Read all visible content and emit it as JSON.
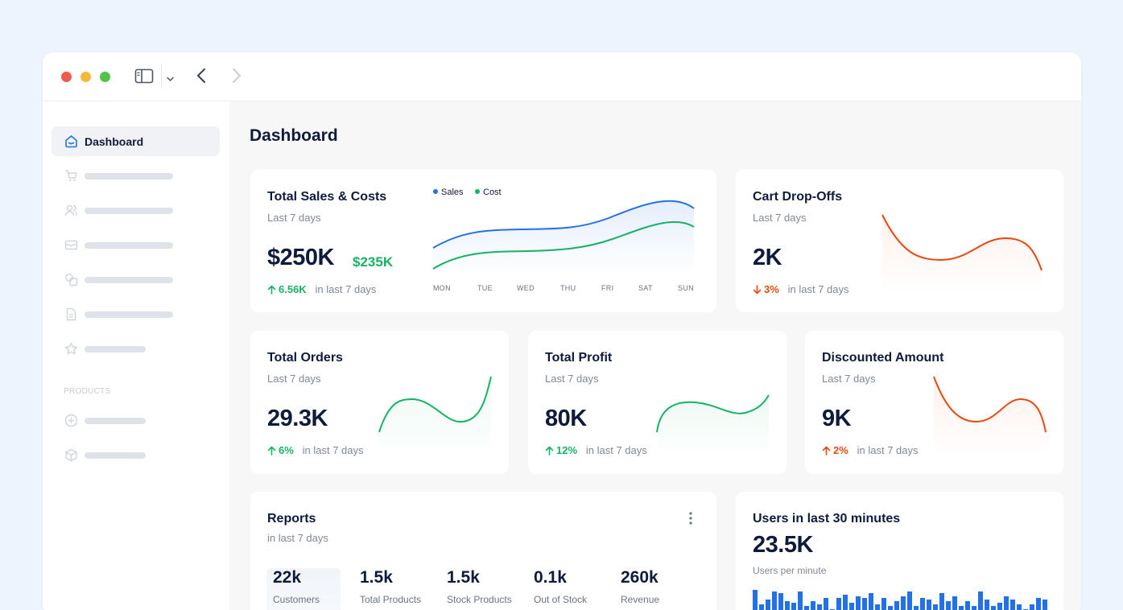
{
  "window": {
    "controls": [
      "close",
      "minimize",
      "maximize"
    ]
  },
  "toolbar": {
    "icons": [
      "sidebar-toggle-icon",
      "chevron-down-icon",
      "back-arrow-icon",
      "forward-arrow-icon"
    ]
  },
  "sidebar": {
    "active_item": "Dashboard",
    "section_label": "PRODUCTS"
  },
  "page": {
    "title": "Dashboard"
  },
  "sales_card": {
    "title": "Total Sales & Costs",
    "subtitle": "Last 7 days",
    "sales_value": "$250K",
    "cost_value": "$235K",
    "trend_value": "6.56K",
    "trend_suffix": "in last 7 days",
    "legend_sales": "Sales",
    "legend_cost": "Cost",
    "days": [
      "MON",
      "TUE",
      "WED",
      "THU",
      "FRI",
      "SAT",
      "SUN"
    ]
  },
  "cart_card": {
    "title": "Cart Drop-Offs",
    "subtitle": "Last 7 days",
    "value": "2K",
    "trend_value": "3%",
    "trend_suffix": "in last 7 days"
  },
  "orders_card": {
    "title": "Total Orders",
    "subtitle": "Last 7 days",
    "value": "29.3K",
    "trend_value": "6%",
    "trend_suffix": "in last 7 days"
  },
  "profit_card": {
    "title": "Total Profit",
    "subtitle": "Last 7 days",
    "value": "80K",
    "trend_value": "12%",
    "trend_suffix": "in last 7 days"
  },
  "discount_card": {
    "title": "Discounted Amount",
    "subtitle": "Last 7 days",
    "value": "9K",
    "trend_value": "2%",
    "trend_suffix": "in last 7 days"
  },
  "reports_card": {
    "title": "Reports",
    "subtitle": "in last 7 days",
    "stats": [
      {
        "value": "22k",
        "label": "Customers"
      },
      {
        "value": "1.5k",
        "label": "Total Products"
      },
      {
        "value": "1.5k",
        "label": "Stock Products"
      },
      {
        "value": "0.1k",
        "label": "Out of Stock"
      },
      {
        "value": "260k",
        "label": "Revenue"
      }
    ]
  },
  "users_card": {
    "title": "Users in last 30 minutes",
    "value": "23.5K",
    "caption": "Users per minute"
  },
  "colors": {
    "accent": "#2470e6",
    "green": "#16b364",
    "red": "#e8490f",
    "navy": "#0f1b3d"
  }
}
